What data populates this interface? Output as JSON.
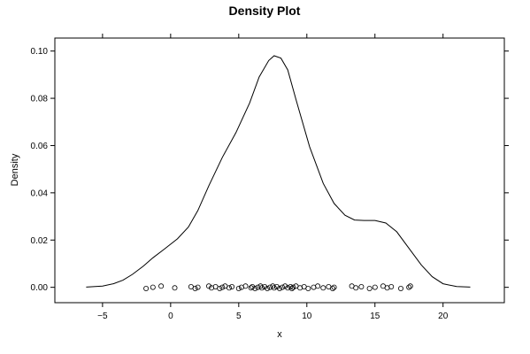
{
  "chart_data": {
    "type": "line",
    "title": "Density Plot",
    "xlabel": "x",
    "ylabel": "Density",
    "xlim": [
      -8.5,
      24.5
    ],
    "ylim": [
      -0.0065,
      0.1055
    ],
    "x_ticks": [
      -5,
      0,
      5,
      10,
      15,
      20
    ],
    "y_ticks": [
      0.0,
      0.02,
      0.04,
      0.06,
      0.08,
      0.1
    ],
    "x_tick_labels": [
      "−5",
      "0",
      "5",
      "10",
      "15",
      "20"
    ],
    "y_tick_labels": [
      "0.00",
      "0.02",
      "0.04",
      "0.06",
      "0.08",
      "0.10"
    ],
    "grid": false,
    "series": [
      {
        "kind": "density",
        "x": [
          -6.2,
          -5.0,
          -4.2,
          -3.5,
          -2.8,
          -2.0,
          -1.3,
          -0.5,
          0.5,
          1.3,
          2.0,
          2.8,
          3.8,
          4.8,
          5.8,
          6.5,
          7.2,
          7.6,
          8.1,
          8.6,
          9.2,
          10.2,
          11.2,
          12.0,
          12.8,
          13.5,
          14.2,
          15.0,
          15.8,
          16.6,
          17.5,
          18.4,
          19.2,
          20.0,
          21.0,
          22.0
        ],
        "y": [
          0.0001,
          0.0005,
          0.0015,
          0.003,
          0.0055,
          0.009,
          0.0125,
          0.016,
          0.0205,
          0.0255,
          0.0325,
          0.043,
          0.055,
          0.0655,
          0.078,
          0.089,
          0.096,
          0.098,
          0.097,
          0.092,
          0.0795,
          0.0595,
          0.044,
          0.0355,
          0.0305,
          0.0285,
          0.0283,
          0.0283,
          0.0272,
          0.0235,
          0.0165,
          0.0095,
          0.0045,
          0.0015,
          0.0003,
          0.0001
        ]
      },
      {
        "kind": "rug-points",
        "x": [
          -1.8,
          -1.3,
          -0.7,
          0.3,
          1.5,
          1.8,
          2.0,
          2.8,
          3.0,
          3.3,
          3.6,
          3.8,
          4.0,
          4.3,
          4.5,
          5.0,
          5.2,
          5.5,
          5.9,
          6.0,
          6.2,
          6.4,
          6.6,
          6.7,
          6.9,
          7.1,
          7.3,
          7.5,
          7.6,
          7.8,
          8.0,
          8.2,
          8.4,
          8.6,
          8.8,
          8.9,
          9.0,
          9.2,
          9.5,
          9.8,
          10.1,
          10.5,
          10.8,
          11.2,
          11.6,
          11.9,
          12.0,
          13.3,
          13.6,
          14.0,
          14.6,
          15.0,
          15.6,
          15.9,
          16.2,
          16.9,
          17.5,
          17.6
        ],
        "y": [
          0.0,
          0.0,
          0.0,
          0.0,
          0.0,
          0.0,
          0.0,
          0.0,
          0.0,
          0.0,
          0.0,
          0.0,
          0.0,
          0.0,
          0.0,
          0.0,
          0.0,
          0.0,
          0.0,
          0.0,
          0.0,
          0.0,
          0.0,
          0.0,
          0.0,
          0.0,
          0.0,
          0.0,
          0.0,
          0.0,
          0.0,
          0.0,
          0.0,
          0.0,
          0.0,
          0.0,
          0.0,
          0.0,
          0.0,
          0.0,
          0.0,
          0.0,
          0.0,
          0.0,
          0.0,
          0.0,
          0.0,
          0.0,
          0.0,
          0.0,
          0.0,
          0.0,
          0.0,
          0.0,
          0.0,
          0.0,
          0.0,
          0.0
        ]
      }
    ]
  }
}
